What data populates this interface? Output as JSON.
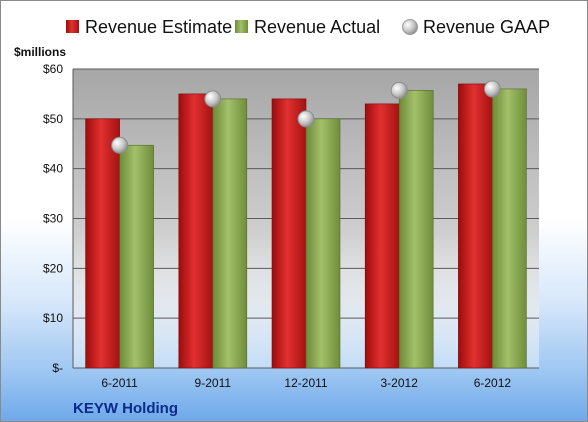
{
  "chart_data": {
    "type": "bar",
    "ylabel": "$millions",
    "company": "KEYW Holding",
    "categories": [
      "6-2011",
      "9-2011",
      "12-2011",
      "3-2012",
      "6-2012"
    ],
    "series": [
      {
        "name": "Revenue Estimate",
        "kind": "bar",
        "color": "#d42020",
        "values": [
          50,
          55,
          54,
          53,
          57
        ]
      },
      {
        "name": "Revenue Actual",
        "kind": "bar",
        "color": "#8fae55",
        "values": [
          44.7,
          54,
          50,
          55.7,
          56
        ]
      },
      {
        "name": "Revenue GAAP",
        "kind": "marker",
        "color": "#bfbfbf",
        "values": [
          44.7,
          54,
          50,
          55.7,
          56
        ]
      }
    ],
    "ylim": [
      0,
      60
    ],
    "yticks": [
      0,
      10,
      20,
      30,
      40,
      50,
      60
    ],
    "ytick_labels": [
      "$-",
      "$10",
      "$20",
      "$30",
      "$40",
      "$50",
      "$60"
    ],
    "grid": true,
    "legend_position": "top"
  }
}
